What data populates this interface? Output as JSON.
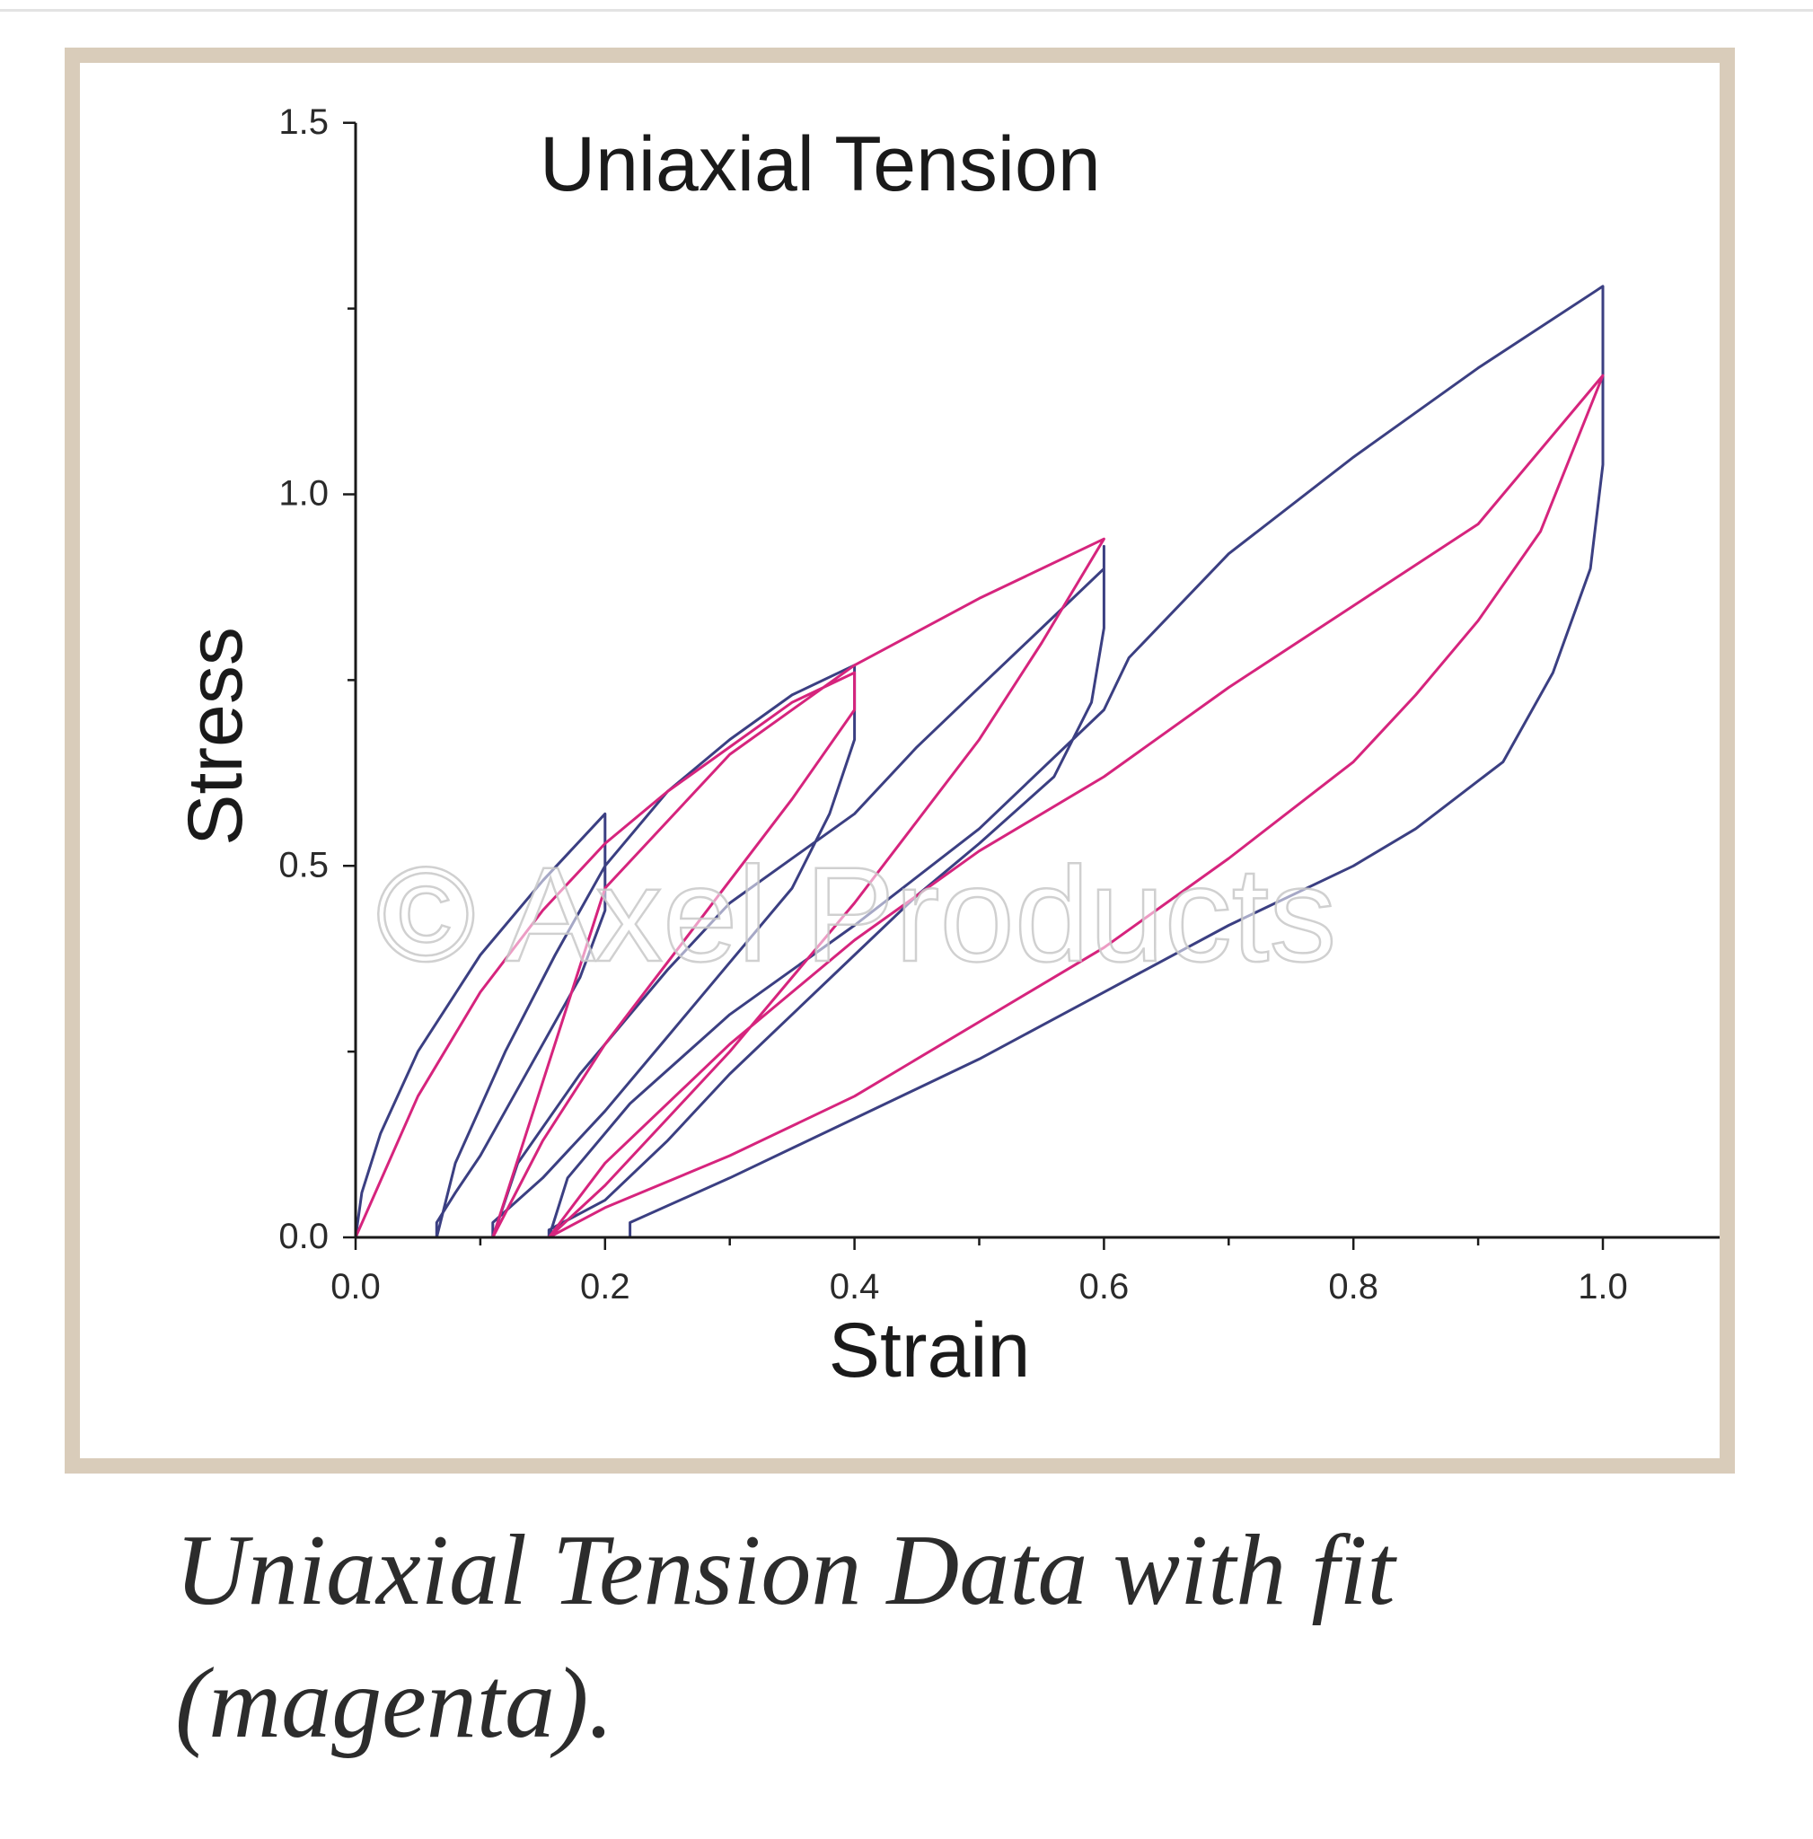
{
  "caption": "Uniaxial Tension Data with fit (magenta).",
  "watermark": "© Axel Products",
  "colors": {
    "frame": "#d9ccba",
    "data_series": "#3b3f82",
    "fit_series": "#d6247d",
    "axis": "#1a1a1a"
  },
  "chart_data": {
    "type": "line",
    "title": "Uniaxial Tension",
    "xlabel": "Strain",
    "ylabel": "Stress",
    "xlim": [
      0.0,
      1.1
    ],
    "ylim": [
      0.0,
      1.5
    ],
    "x_ticks": [
      0.0,
      0.1,
      0.2,
      0.3,
      0.4,
      0.5,
      0.6,
      0.7,
      0.8,
      0.9,
      1.0,
      1.1
    ],
    "x_tick_labels": [
      "0.0",
      "0.2",
      "0.4",
      "0.6",
      "0.8",
      "1.0"
    ],
    "x_tick_label_values": [
      0.0,
      0.2,
      0.4,
      0.6,
      0.8,
      1.0
    ],
    "y_ticks": [
      0.0,
      0.25,
      0.5,
      0.75,
      1.0,
      1.25,
      1.5
    ],
    "y_tick_labels": [
      "0.0",
      "0.5",
      "1.0",
      "1.5"
    ],
    "y_tick_label_values": [
      0.0,
      0.5,
      1.0,
      1.5
    ],
    "grid": false,
    "legend": "none",
    "series": [
      {
        "role": "data",
        "color": "#3b3f82",
        "x": [
          0.0,
          0.005,
          0.02,
          0.05,
          0.1,
          0.15,
          0.2,
          0.2,
          0.2,
          0.18,
          0.15,
          0.12,
          0.1,
          0.08,
          0.065,
          0.065,
          0.08,
          0.12,
          0.16,
          0.2,
          0.25,
          0.3,
          0.35,
          0.4,
          0.4,
          0.4,
          0.38,
          0.35,
          0.3,
          0.25,
          0.2,
          0.15,
          0.11,
          0.11,
          0.13,
          0.18,
          0.25,
          0.3,
          0.4,
          0.45,
          0.5,
          0.55,
          0.6,
          0.6,
          0.6,
          0.59,
          0.56,
          0.5,
          0.45,
          0.4,
          0.35,
          0.3,
          0.25,
          0.2,
          0.155,
          0.155,
          0.17,
          0.22,
          0.3,
          0.4,
          0.5,
          0.6,
          0.62,
          0.7,
          0.8,
          0.9,
          1.0,
          1.0,
          1.0,
          0.99,
          0.96,
          0.92,
          0.85,
          0.8,
          0.7,
          0.6,
          0.5,
          0.4,
          0.3,
          0.22,
          0.22
        ],
        "y": [
          0.0,
          0.06,
          0.14,
          0.25,
          0.38,
          0.48,
          0.57,
          0.48,
          0.44,
          0.35,
          0.26,
          0.17,
          0.11,
          0.06,
          0.02,
          0.0,
          0.1,
          0.25,
          0.38,
          0.5,
          0.6,
          0.67,
          0.73,
          0.77,
          0.73,
          0.67,
          0.57,
          0.47,
          0.37,
          0.27,
          0.17,
          0.08,
          0.02,
          0.0,
          0.1,
          0.22,
          0.36,
          0.45,
          0.57,
          0.66,
          0.74,
          0.82,
          0.9,
          0.93,
          0.82,
          0.72,
          0.62,
          0.53,
          0.46,
          0.38,
          0.3,
          0.22,
          0.13,
          0.05,
          0.01,
          0.0,
          0.08,
          0.18,
          0.3,
          0.42,
          0.55,
          0.71,
          0.78,
          0.92,
          1.05,
          1.17,
          1.28,
          1.2,
          1.04,
          0.9,
          0.76,
          0.64,
          0.55,
          0.5,
          0.42,
          0.33,
          0.24,
          0.16,
          0.08,
          0.02,
          0.0
        ]
      },
      {
        "role": "fit",
        "color": "#d6247d",
        "x": [
          0.0,
          0.05,
          0.1,
          0.15,
          0.2,
          0.25,
          0.3,
          0.35,
          0.4,
          0.4,
          0.35,
          0.3,
          0.25,
          0.2,
          0.15,
          0.11,
          0.11,
          0.2,
          0.3,
          0.4,
          0.5,
          0.6,
          0.6,
          0.55,
          0.5,
          0.45,
          0.4,
          0.35,
          0.3,
          0.25,
          0.2,
          0.155,
          0.155,
          0.2,
          0.3,
          0.4,
          0.5,
          0.6,
          0.7,
          0.8,
          0.9,
          1.0,
          1.0,
          0.95,
          0.9,
          0.85,
          0.8,
          0.7,
          0.6,
          0.5,
          0.4,
          0.3,
          0.2,
          0.155
        ],
        "y": [
          0.0,
          0.19,
          0.33,
          0.44,
          0.53,
          0.6,
          0.66,
          0.72,
          0.76,
          0.71,
          0.59,
          0.48,
          0.37,
          0.26,
          0.13,
          0.0,
          0.0,
          0.47,
          0.65,
          0.77,
          0.86,
          0.94,
          0.94,
          0.8,
          0.67,
          0.56,
          0.45,
          0.35,
          0.25,
          0.16,
          0.07,
          0.0,
          0.0,
          0.1,
          0.26,
          0.4,
          0.52,
          0.62,
          0.74,
          0.85,
          0.96,
          1.16,
          1.16,
          0.95,
          0.83,
          0.73,
          0.64,
          0.51,
          0.39,
          0.29,
          0.19,
          0.11,
          0.04,
          0.0
        ]
      }
    ]
  }
}
